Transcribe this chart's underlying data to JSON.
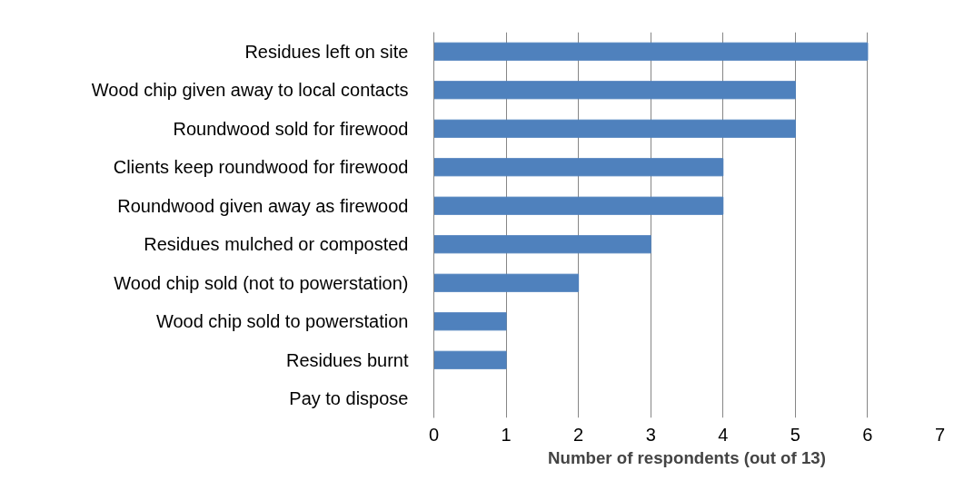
{
  "chart_data": {
    "type": "bar",
    "orientation": "horizontal",
    "xlabel": "Number of respondents (out of 13)",
    "categories": [
      "Residues left on site",
      "Wood chip given away to local contacts",
      "Roundwood sold for firewood",
      "Clients keep roundwood for firewood",
      "Roundwood given away as firewood",
      "Residues mulched or composted",
      "Wood chip sold (not to powerstation)",
      "Wood chip sold to powerstation",
      "Residues burnt",
      "Pay to dispose"
    ],
    "values": [
      6,
      5,
      5,
      4,
      4,
      3,
      2,
      1,
      1,
      0
    ],
    "color": "#4f81bd",
    "xlim": [
      0,
      7
    ],
    "xticks": [
      0,
      1,
      2,
      3,
      4,
      5,
      6,
      7
    ],
    "grid": "x"
  }
}
